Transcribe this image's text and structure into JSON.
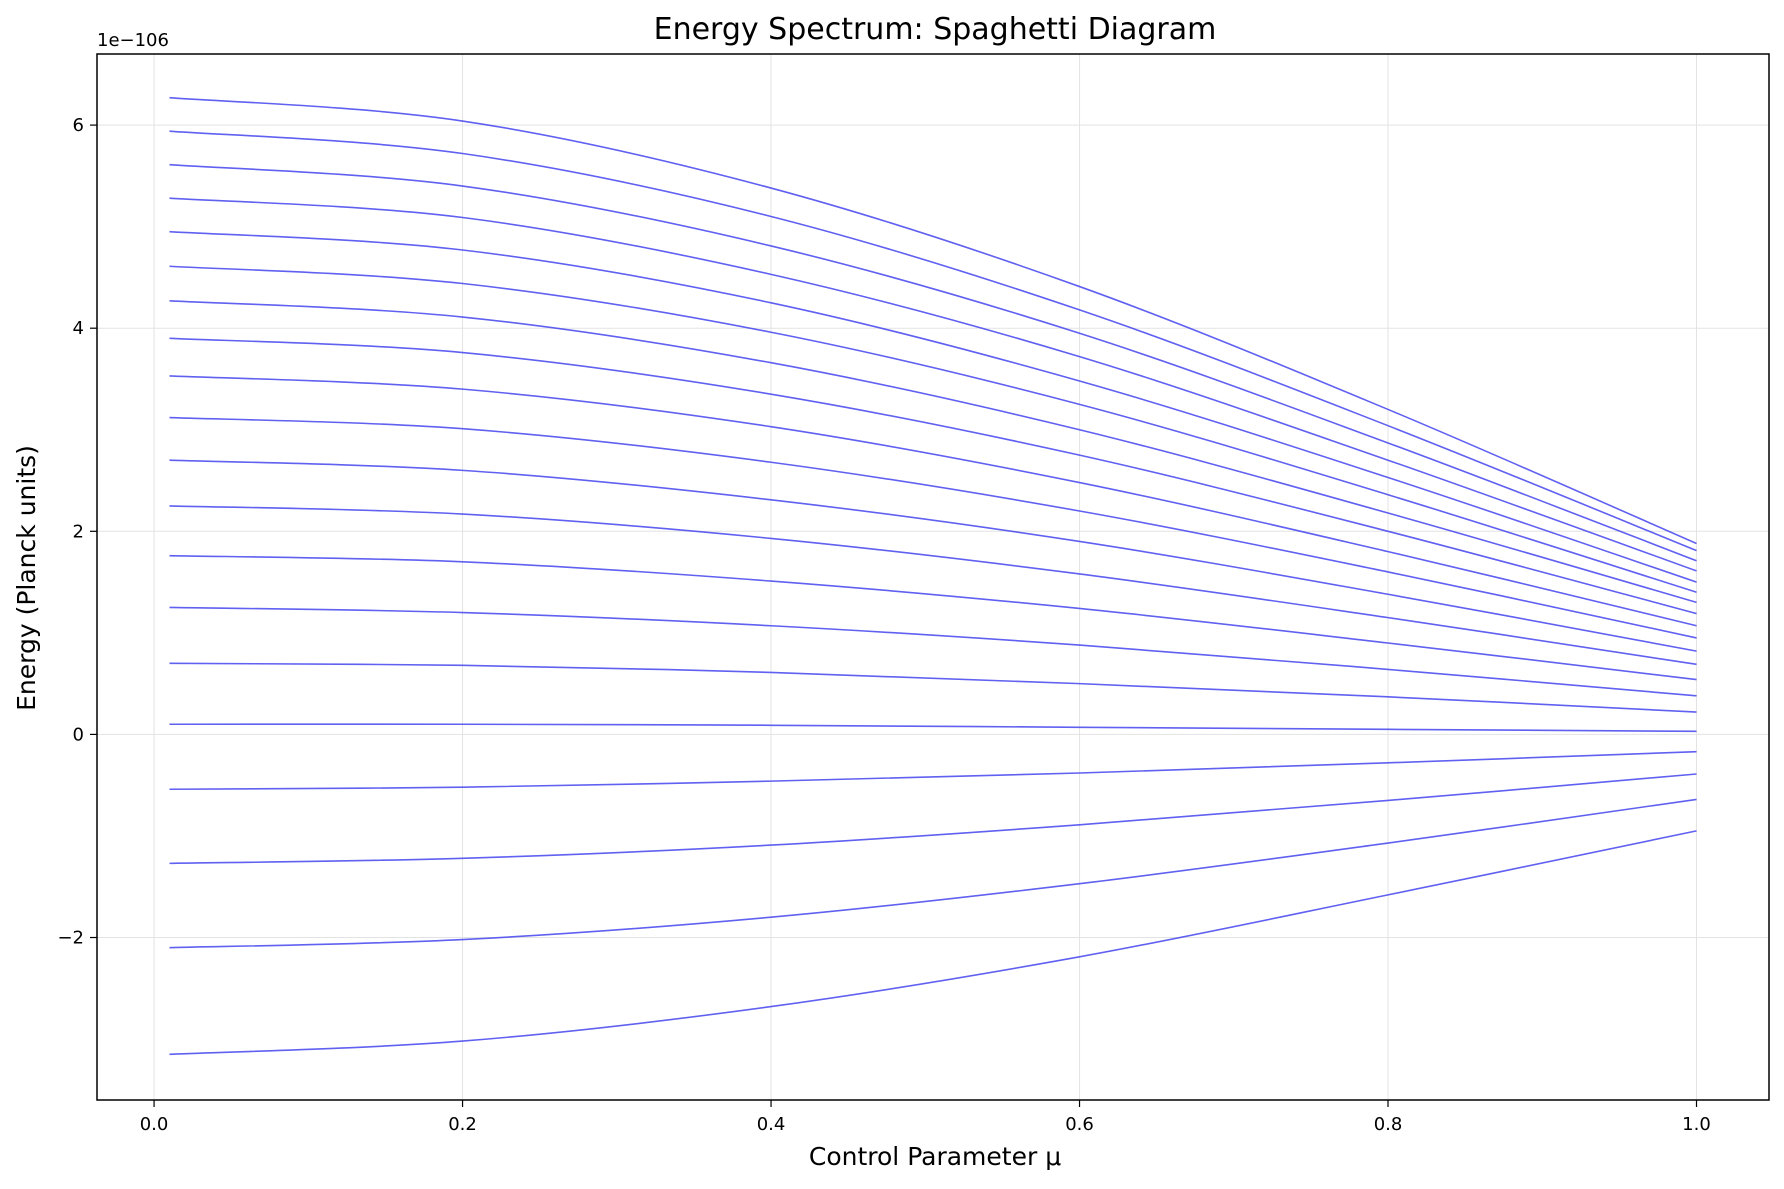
{
  "chart_data": {
    "type": "line",
    "title": "Energy Spectrum: Spaghetti Diagram",
    "xlabel": "Control Parameter μ",
    "ylabel": "Energy (Planck units)",
    "y_offset_label": "1e−106",
    "xlim": [
      -0.037,
      1.047
    ],
    "ylim": [
      -3.6,
      6.7
    ],
    "xticks": [
      0.0,
      0.2,
      0.4,
      0.6,
      0.8,
      1.0
    ],
    "xtick_labels": [
      "0.0",
      "0.2",
      "0.4",
      "0.6",
      "0.8",
      "1.0"
    ],
    "yticks": [
      -2,
      0,
      2,
      4,
      6
    ],
    "ytick_labels": [
      "−2",
      "0",
      "2",
      "4",
      "6"
    ],
    "grid": true,
    "legend": "none",
    "line_color": "#4444ee",
    "x": [
      0.01,
      0.2,
      0.4,
      0.6,
      0.8,
      1.0
    ],
    "series": [
      {
        "values": [
          -3.15,
          -3.02,
          -2.68,
          -2.19,
          -1.58,
          -0.95
        ]
      },
      {
        "values": [
          -2.1,
          -2.02,
          -1.8,
          -1.47,
          -1.07,
          -0.64
        ]
      },
      {
        "values": [
          -1.27,
          -1.22,
          -1.09,
          -0.89,
          -0.65,
          -0.39
        ]
      },
      {
        "values": [
          -0.54,
          -0.52,
          -0.46,
          -0.38,
          -0.28,
          -0.17
        ]
      },
      {
        "values": [
          0.1,
          0.1,
          0.09,
          0.07,
          0.05,
          0.03
        ]
      },
      {
        "values": [
          0.7,
          0.68,
          0.61,
          0.5,
          0.37,
          0.22
        ]
      },
      {
        "values": [
          1.25,
          1.2,
          1.07,
          0.88,
          0.64,
          0.38
        ]
      },
      {
        "values": [
          1.76,
          1.7,
          1.51,
          1.24,
          0.9,
          0.54
        ]
      },
      {
        "values": [
          2.25,
          2.17,
          1.93,
          1.58,
          1.15,
          0.69
        ]
      },
      {
        "values": [
          2.7,
          2.6,
          2.31,
          1.9,
          1.38,
          0.82
        ]
      },
      {
        "values": [
          3.12,
          3.01,
          2.68,
          2.2,
          1.6,
          0.95
        ]
      },
      {
        "values": [
          3.53,
          3.4,
          3.03,
          2.48,
          1.8,
          1.07
        ]
      },
      {
        "values": [
          3.9,
          3.76,
          3.35,
          2.75,
          2.0,
          1.19
        ]
      },
      {
        "values": [
          4.27,
          4.11,
          3.66,
          3.0,
          2.18,
          1.3
        ]
      },
      {
        "values": [
          4.61,
          4.44,
          3.96,
          3.25,
          2.36,
          1.4
        ]
      },
      {
        "values": [
          4.95,
          4.77,
          4.25,
          3.48,
          2.53,
          1.5
        ]
      },
      {
        "values": [
          5.28,
          5.09,
          4.53,
          3.72,
          2.7,
          1.61
        ]
      },
      {
        "values": [
          5.61,
          5.4,
          4.81,
          3.95,
          2.87,
          1.71
        ]
      },
      {
        "values": [
          5.94,
          5.72,
          5.1,
          4.18,
          3.04,
          1.81
        ]
      },
      {
        "values": [
          6.27,
          6.04,
          5.38,
          4.41,
          3.2,
          1.88
        ]
      }
    ]
  }
}
